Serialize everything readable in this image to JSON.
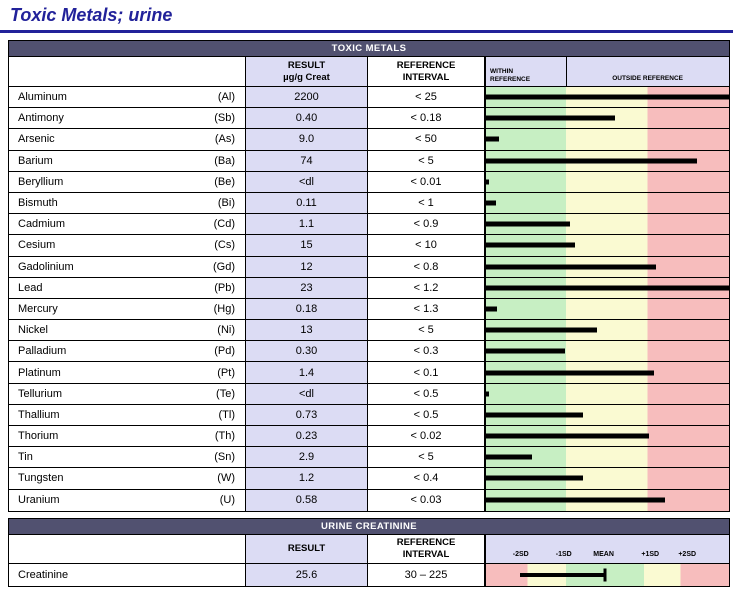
{
  "page": {
    "title": "Toxic Metals; urine"
  },
  "colors": {
    "title_blue": "#22229a",
    "section_bar": "#515170",
    "lavender": "#dcdcf4",
    "zone_green": "#c7efc3",
    "zone_yellow": "#fafad2",
    "zone_red": "#f7bdbd",
    "bar_black": "#000000"
  },
  "metals": {
    "section_title": "TOXIC METALS",
    "columns": {
      "result_label": "RESULT",
      "result_unit": "µg/g Creat",
      "reference_label": "REFERENCE\nINTERVAL",
      "within_label": "WITHIN\nREFERENCE",
      "outside_label": "OUTSIDE REFERENCE"
    },
    "rows": [
      {
        "name": "Aluminum",
        "symbol": "(Al)",
        "result": "2200",
        "reference": "< 25",
        "bar_pct": 100
      },
      {
        "name": "Antimony",
        "symbol": "(Sb)",
        "result": "0.40",
        "reference": "< 0.18",
        "bar_pct": 53
      },
      {
        "name": "Arsenic",
        "symbol": "(As)",
        "result": "9.0",
        "reference": "< 50",
        "bar_pct": 5.5
      },
      {
        "name": "Barium",
        "symbol": "(Ba)",
        "result": "74",
        "reference": "< 5",
        "bar_pct": 87
      },
      {
        "name": "Beryllium",
        "symbol": "(Be)",
        "result": "<dl",
        "reference": "< 0.01",
        "bar_pct": 1.3
      },
      {
        "name": "Bismuth",
        "symbol": "(Bi)",
        "result": "0.11",
        "reference": "< 1",
        "bar_pct": 4
      },
      {
        "name": "Cadmium",
        "symbol": "(Cd)",
        "result": "1.1",
        "reference": "< 0.9",
        "bar_pct": 34.5
      },
      {
        "name": "Cesium",
        "symbol": "(Cs)",
        "result": "15",
        "reference": "< 10",
        "bar_pct": 36.5
      },
      {
        "name": "Gadolinium",
        "symbol": "(Gd)",
        "result": "12",
        "reference": "< 0.8",
        "bar_pct": 70
      },
      {
        "name": "Lead",
        "symbol": "(Pb)",
        "result": "23",
        "reference": "< 1.2",
        "bar_pct": 100
      },
      {
        "name": "Mercury",
        "symbol": "(Hg)",
        "result": "0.18",
        "reference": "< 1.3",
        "bar_pct": 4.5
      },
      {
        "name": "Nickel",
        "symbol": "(Ni)",
        "result": "13",
        "reference": "< 5",
        "bar_pct": 45.5
      },
      {
        "name": "Palladium",
        "symbol": "(Pd)",
        "result": "0.30",
        "reference": "< 0.3",
        "bar_pct": 32.5
      },
      {
        "name": "Platinum",
        "symbol": "(Pt)",
        "result": "1.4",
        "reference": "< 0.1",
        "bar_pct": 69
      },
      {
        "name": "Tellurium",
        "symbol": "(Te)",
        "result": "<dl",
        "reference": "< 0.5",
        "bar_pct": 1.3
      },
      {
        "name": "Thallium",
        "symbol": "(Tl)",
        "result": "0.73",
        "reference": "< 0.5",
        "bar_pct": 40
      },
      {
        "name": "Thorium",
        "symbol": "(Th)",
        "result": "0.23",
        "reference": "< 0.02",
        "bar_pct": 67
      },
      {
        "name": "Tin",
        "symbol": "(Sn)",
        "result": "2.9",
        "reference": "< 5",
        "bar_pct": 19
      },
      {
        "name": "Tungsten",
        "symbol": "(W)",
        "result": "1.2",
        "reference": "< 0.4",
        "bar_pct": 40
      },
      {
        "name": "Uranium",
        "symbol": "(U)",
        "result": "0.58",
        "reference": "< 0.03",
        "bar_pct": 73.5
      }
    ]
  },
  "creatinine": {
    "section_title": "URINE CREATININE",
    "columns": {
      "result_label": "RESULT",
      "reference_label": "REFERENCE\nINTERVAL"
    },
    "row": {
      "name": "Creatinine",
      "result": "25.6",
      "reference": "30 – 225"
    },
    "chart": {
      "scale_labels": [
        {
          "text": "-2SD",
          "pos_pct": 14.3
        },
        {
          "text": "-1SD",
          "pos_pct": 32
        },
        {
          "text": "MEAN",
          "pos_pct": 48.4
        },
        {
          "text": "+1SD",
          "pos_pct": 67.6
        },
        {
          "text": "+2SD",
          "pos_pct": 82.8
        }
      ],
      "bar_left_pct": 14,
      "bar_width_pct": 35
    }
  },
  "chart_data": {
    "type": "bar",
    "title": "TOXIC METALS result bars (position relative to reference zones)",
    "categories": [
      "Aluminum",
      "Antimony",
      "Arsenic",
      "Barium",
      "Beryllium",
      "Bismuth",
      "Cadmium",
      "Cesium",
      "Gadolinium",
      "Lead",
      "Mercury",
      "Nickel",
      "Palladium",
      "Platinum",
      "Tellurium",
      "Thallium",
      "Thorium",
      "Tin",
      "Tungsten",
      "Uranium"
    ],
    "values_pct_of_scale": [
      100,
      53,
      5.5,
      87,
      1.3,
      4,
      34.5,
      36.5,
      70,
      100,
      4.5,
      45.5,
      32.5,
      69,
      1.3,
      40,
      67,
      19,
      40,
      73.5
    ],
    "zones": {
      "within_reference_green_pct": [
        0,
        33
      ],
      "outside_yellow_pct": [
        33,
        66.5
      ],
      "outside_red_pct": [
        66.5,
        100
      ]
    },
    "creatinine_bar": {
      "from_pct": 14,
      "to_pct": 49,
      "scale": [
        "-2SD",
        "-1SD",
        "MEAN",
        "+1SD",
        "+2SD"
      ]
    }
  }
}
